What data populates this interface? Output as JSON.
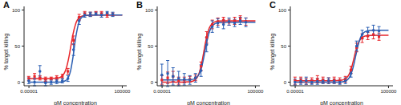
{
  "chart_data": [
    {
      "type": "scatter",
      "title": "A",
      "x_label": "pM concentration",
      "y_label": "% target killing",
      "log": "x",
      "xlim": [
        3e-06,
        300000
      ],
      "xticks": [
        1e-05,
        100000
      ],
      "ylim": [
        -5,
        105
      ],
      "yticks": [
        0,
        50,
        100
      ],
      "series": [
        {
          "color": "#e8262a",
          "marker": "square",
          "x": [
            9.5e-06,
            4e-05,
            0.00015,
            0.0006,
            0.0024,
            0.0095,
            0.038,
            0.15,
            0.6,
            2.4,
            9.5,
            38,
            150,
            600,
            2400,
            9500
          ],
          "values": [
            5,
            8,
            6,
            4,
            5,
            6,
            8,
            15,
            58,
            90,
            95,
            94,
            96,
            95,
            93,
            94
          ],
          "errors": [
            3,
            4,
            3,
            3,
            2,
            3,
            3,
            4,
            6,
            4,
            3,
            3,
            2,
            3,
            3,
            2
          ],
          "fit_x": [
            1e-05,
            0.001,
            0.01,
            0.03,
            0.1,
            0.2,
            0.3,
            0.5,
            1,
            3,
            10,
            100,
            10000,
            100000
          ],
          "fit_values": [
            5,
            5,
            5.5,
            7.7,
            19.2,
            36,
            49,
            65,
            80.6,
            90.3,
            92.5,
            93,
            93,
            93
          ]
        },
        {
          "color": "#2b5fb3",
          "marker": "circle",
          "x": [
            9.5e-06,
            4e-05,
            0.00015,
            0.0006,
            0.0024,
            0.0095,
            0.038,
            0.15,
            0.6,
            2.4,
            9.5,
            38,
            150,
            600,
            2400,
            9500
          ],
          "values": [
            2,
            0,
            15,
            -1,
            0,
            1,
            2,
            5,
            45,
            85,
            93,
            94,
            95,
            93,
            96,
            94
          ],
          "errors": [
            4,
            5,
            8,
            4,
            3,
            3,
            3,
            4,
            8,
            5,
            3,
            3,
            2,
            3,
            2,
            3
          ],
          "fit_x": [
            1e-05,
            0.001,
            0.01,
            0.03,
            0.1,
            0.2,
            0.3,
            0.5,
            1,
            3,
            10,
            100,
            10000,
            100000
          ],
          "fit_values": [
            0,
            0,
            0,
            0.3,
            2.7,
            8.9,
            16.6,
            32.9,
            60.9,
            86.7,
            92.2,
            93,
            93,
            93
          ]
        }
      ]
    },
    {
      "type": "scatter",
      "title": "B",
      "x_label": "pM concentration",
      "y_label": "% target killing",
      "log": "x",
      "xlim": [
        3e-06,
        300000
      ],
      "xticks": [
        1e-05,
        100000
      ],
      "ylim": [
        -5,
        105
      ],
      "yticks": [
        0,
        50,
        100
      ],
      "series": [
        {
          "color": "#e8262a",
          "marker": "square",
          "x": [
            9.5e-06,
            4e-05,
            0.00015,
            0.0006,
            0.0024,
            0.0095,
            0.038,
            0.15,
            0.6,
            2.4,
            9.5,
            38,
            150,
            600,
            2400,
            9500
          ],
          "values": [
            3,
            6,
            8,
            2,
            3,
            4,
            6,
            22,
            62,
            80,
            84,
            86,
            83,
            85,
            88,
            84
          ],
          "errors": [
            6,
            8,
            7,
            5,
            4,
            4,
            4,
            6,
            8,
            6,
            5,
            4,
            4,
            5,
            4,
            5
          ],
          "fit_x": [
            1e-05,
            0.001,
            0.01,
            0.03,
            0.1,
            0.2,
            0.3,
            0.5,
            1,
            3,
            10,
            100,
            10000,
            100000
          ],
          "fit_values": [
            0,
            0,
            0.5,
            2.6,
            13.7,
            29.9,
            42.5,
            58,
            73,
            82.4,
            84.6,
            85,
            85,
            85
          ]
        },
        {
          "color": "#2b5fb3",
          "marker": "circle",
          "x": [
            9.5e-06,
            4e-05,
            0.00015,
            0.0006,
            0.0024,
            0.0095,
            0.038,
            0.15,
            0.6,
            2.4,
            9.5,
            38,
            150,
            600,
            2400,
            9500
          ],
          "values": [
            10,
            12,
            8,
            5,
            4,
            3,
            6,
            16,
            52,
            77,
            82,
            80,
            84,
            82,
            85,
            83
          ],
          "errors": [
            15,
            18,
            12,
            10,
            8,
            6,
            6,
            8,
            10,
            8,
            6,
            6,
            5,
            5,
            5,
            6
          ],
          "fit_x": [
            1e-05,
            0.001,
            0.01,
            0.03,
            0.1,
            0.2,
            0.3,
            0.5,
            1,
            3,
            10,
            100,
            10000,
            100000
          ],
          "fit_values": [
            3,
            3,
            3.3,
            4.6,
            11.9,
            23.9,
            34.5,
            49.6,
            66.8,
            79.3,
            82.4,
            83,
            83,
            83
          ]
        }
      ]
    },
    {
      "type": "scatter",
      "title": "C",
      "x_label": "pM concentration",
      "y_label": "% target killing",
      "log": "x",
      "xlim": [
        3e-06,
        300000
      ],
      "xticks": [
        1e-05,
        100000
      ],
      "ylim": [
        -5,
        105
      ],
      "yticks": [
        0,
        50,
        100
      ],
      "series": [
        {
          "color": "#e8262a",
          "marker": "square",
          "x": [
            9.5e-06,
            4e-05,
            0.00015,
            0.0006,
            0.0024,
            0.0095,
            0.038,
            0.15,
            0.6,
            2.4,
            9.5,
            38,
            150,
            600,
            2400,
            9500
          ],
          "values": [
            2,
            3,
            1,
            2,
            4,
            3,
            2,
            3,
            2,
            4,
            17,
            48,
            61,
            64,
            66,
            63
          ],
          "errors": [
            5,
            4,
            4,
            4,
            5,
            4,
            4,
            4,
            4,
            4,
            5,
            6,
            6,
            5,
            6,
            5
          ],
          "fit_x": [
            1e-05,
            0.001,
            0.1,
            1,
            3,
            10,
            20,
            30,
            50,
            100,
            300,
            1000,
            10000,
            100000
          ],
          "fit_values": [
            2,
            2,
            2,
            2.7,
            5.5,
            18.4,
            33.5,
            42.8,
            52.3,
            59.8,
            63.9,
            64.8,
            65,
            65
          ]
        },
        {
          "color": "#2b5fb3",
          "marker": "circle",
          "x": [
            9.5e-06,
            4e-05,
            0.00015,
            0.0006,
            0.0024,
            0.0095,
            0.038,
            0.15,
            0.6,
            2.4,
            9.5,
            38,
            150,
            600,
            2400,
            9500
          ],
          "values": [
            0,
            1,
            2,
            0,
            1,
            1,
            2,
            1,
            0,
            2,
            12,
            50,
            66,
            70,
            72,
            71
          ],
          "errors": [
            4,
            4,
            5,
            3,
            4,
            3,
            4,
            3,
            3,
            4,
            5,
            7,
            6,
            6,
            7,
            6
          ],
          "fit_x": [
            1e-05,
            0.001,
            0.1,
            1,
            3,
            10,
            20,
            30,
            50,
            100,
            300,
            1000,
            10000,
            100000
          ],
          "fit_values": [
            0,
            0,
            0,
            0.4,
            2.2,
            11.6,
            25.4,
            36,
            49.1,
            61.9,
            69.8,
            71.6,
            72,
            72
          ]
        }
      ]
    }
  ]
}
